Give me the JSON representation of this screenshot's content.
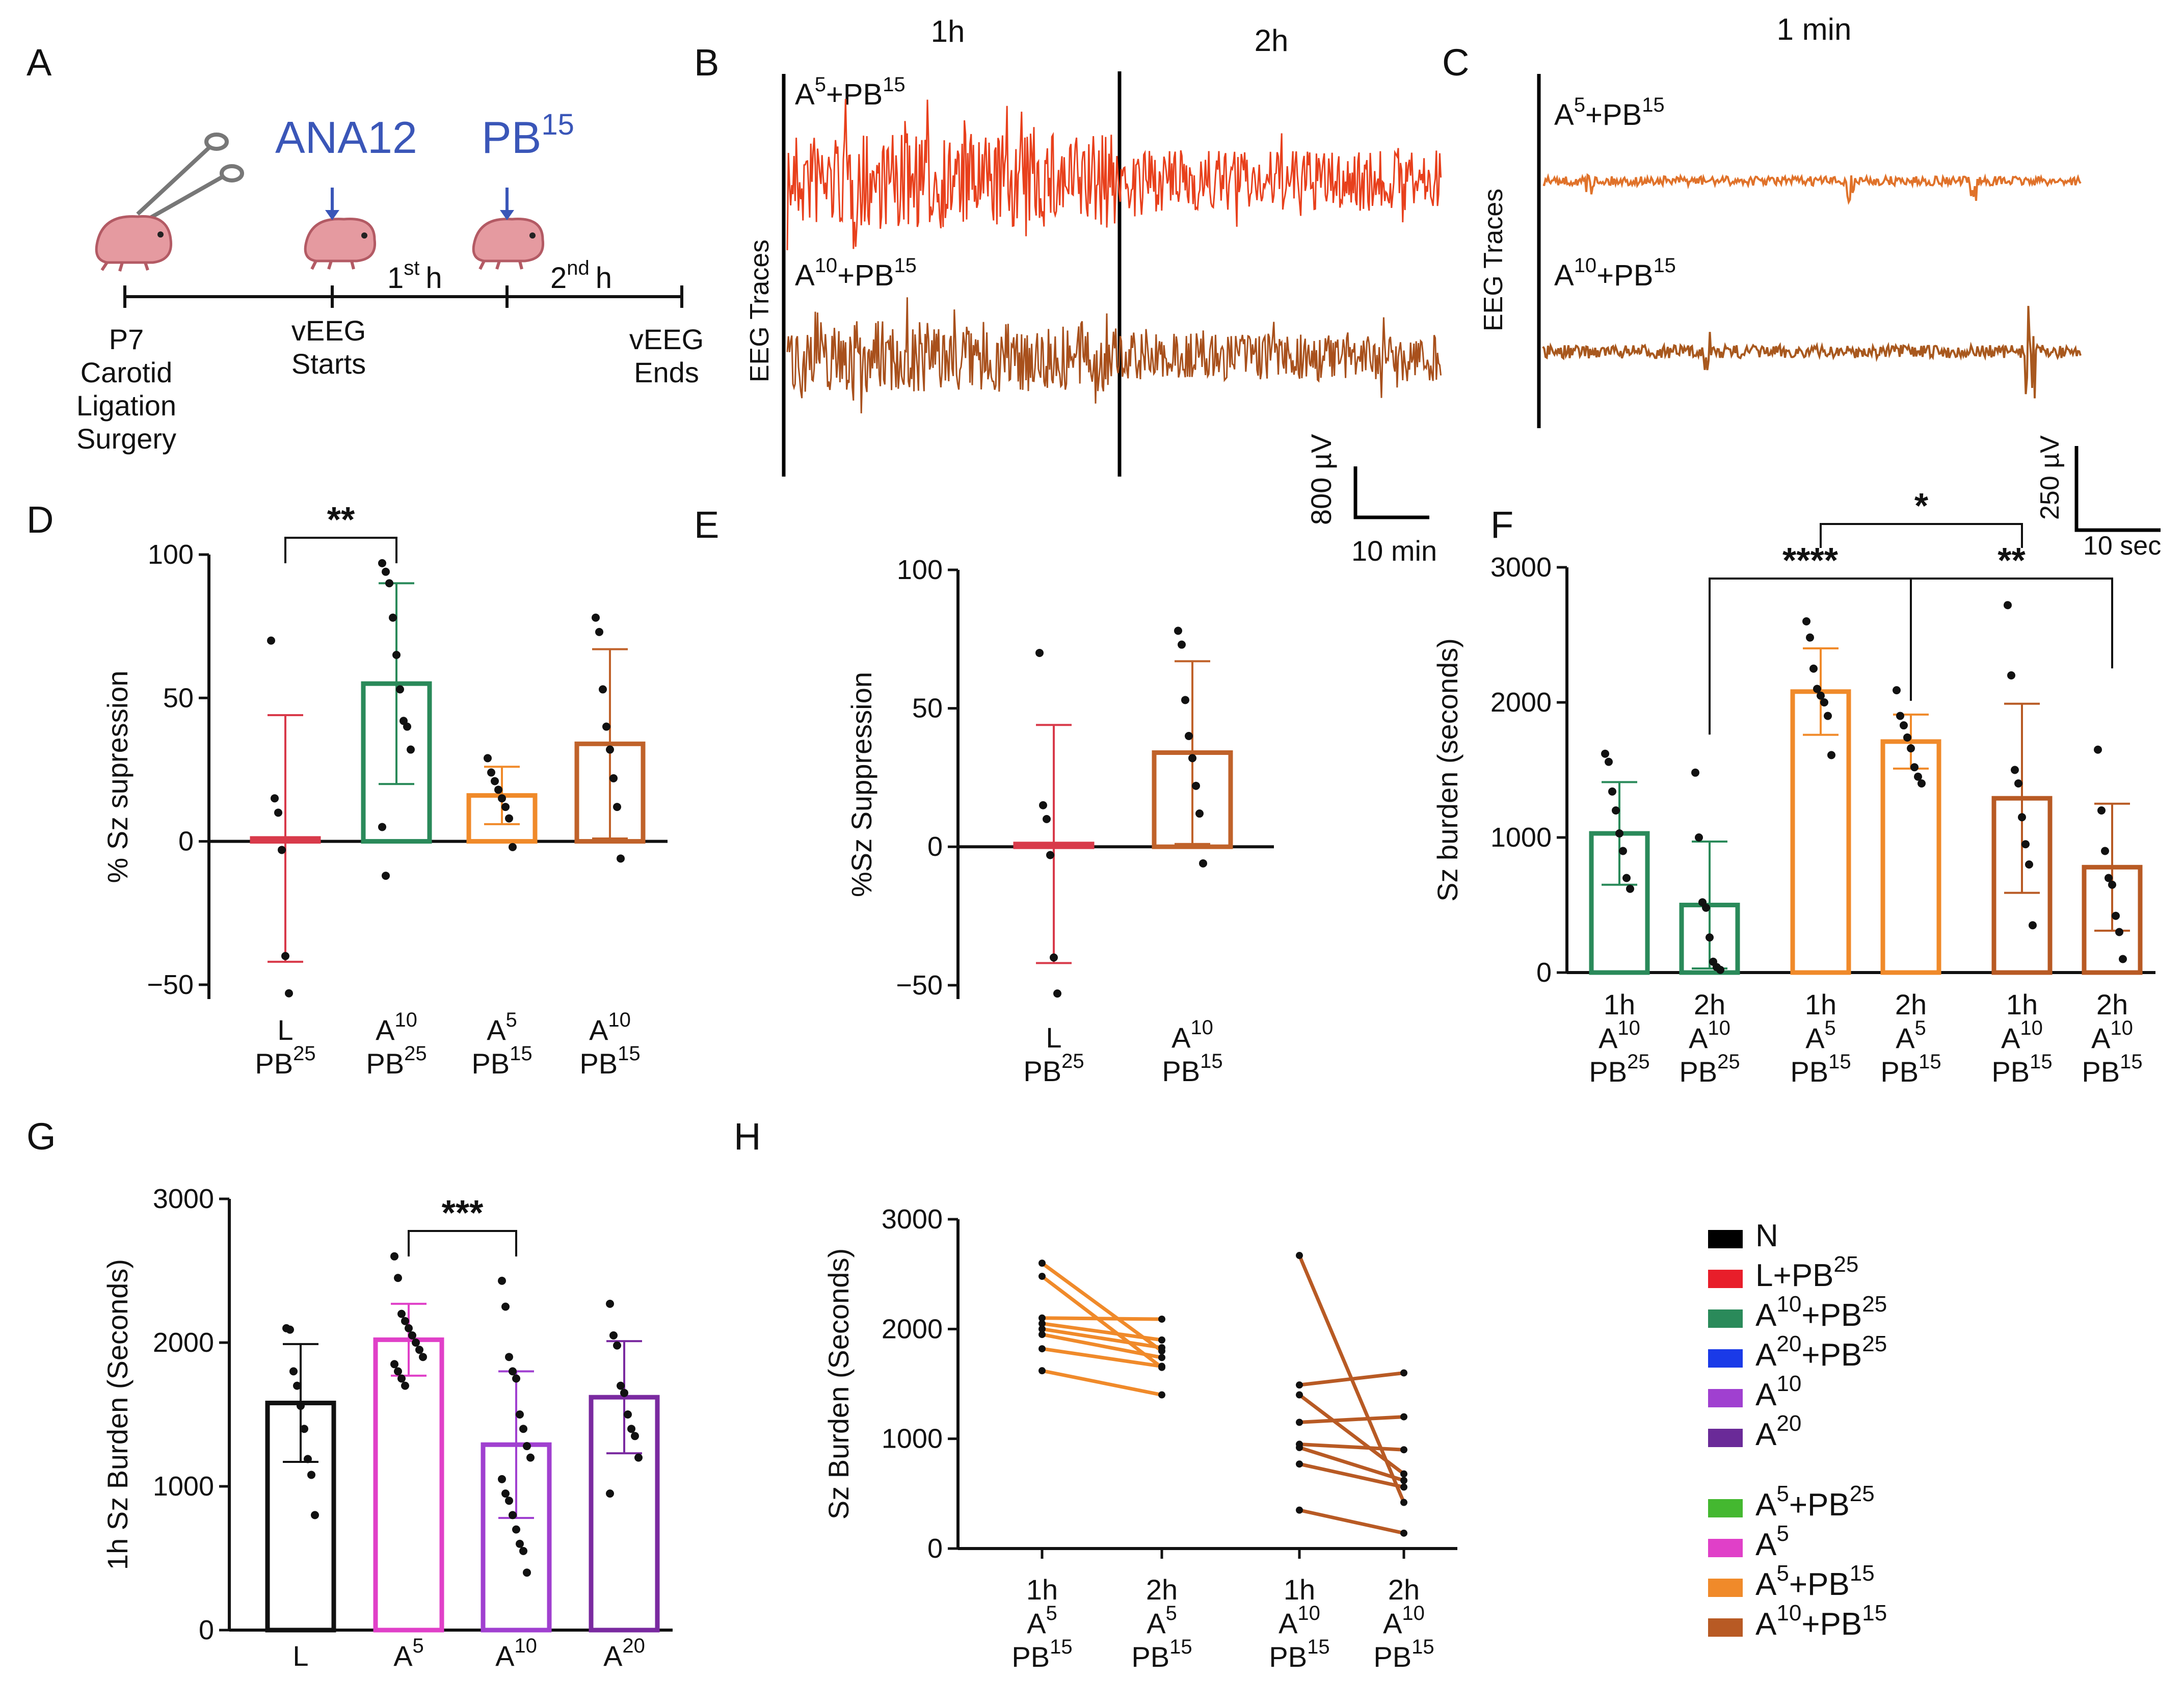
{
  "panel_letters": [
    "A",
    "B",
    "C",
    "D",
    "E",
    "F",
    "G",
    "H"
  ],
  "panel_a": {
    "drugs": [
      "ANA12",
      "PB",
      "15"
    ],
    "hours": [
      {
        "label": "1",
        "sup": "st",
        "unit": "h"
      },
      {
        "label": "2",
        "sup": "nd",
        "unit": "h"
      }
    ],
    "events": [
      [
        "P7",
        "Carotid",
        "Ligation",
        "Surgery"
      ],
      [
        "vEEG",
        "Starts"
      ],
      [
        "vEEG",
        "Ends"
      ]
    ],
    "drug_color": "#3a56b8"
  },
  "panel_b": {
    "hour_labels": [
      "1h",
      "2h"
    ],
    "trace_labels": [
      {
        "base": "A",
        "sup1": "5",
        "mid": "+PB",
        "sup2": "15"
      },
      {
        "base": "A",
        "sup1": "10",
        "mid": "+PB",
        "sup2": "15"
      }
    ],
    "ylabel": "EEG Traces",
    "scale_y": "800 µV",
    "scale_x": "10 min",
    "colors": [
      "#e8401c",
      "#a8501c"
    ]
  },
  "panel_c": {
    "title": "1 min",
    "trace_labels": [
      {
        "base": "A",
        "sup1": "5",
        "mid": "+PB",
        "sup2": "15"
      },
      {
        "base": "A",
        "sup1": "10",
        "mid": "+PB",
        "sup2": "15"
      }
    ],
    "ylabel": "EEG Traces",
    "scale_y": "250 µV",
    "scale_x": "10 sec",
    "colors": [
      "#e0722a",
      "#a8581e"
    ]
  },
  "chart_data": [
    {
      "id": "D",
      "type": "bar",
      "ylabel": "% Sz supression",
      "ylim": [
        -55,
        100
      ],
      "yticks": [
        -50,
        0,
        50,
        100
      ],
      "tick_labels": [
        "−50",
        "0",
        "50",
        "100"
      ],
      "categories": [
        [
          {
            "t": "L"
          },
          {
            "t": "PB",
            "s": "25"
          }
        ],
        [
          {
            "t": "A",
            "s": "10"
          },
          {
            "t": "PB",
            "s": "25"
          }
        ],
        [
          {
            "t": "A",
            "s": "5"
          },
          {
            "t": "PB",
            "s": "15"
          }
        ],
        [
          {
            "t": "A",
            "s": "10"
          },
          {
            "t": "PB",
            "s": "15"
          }
        ]
      ],
      "values": [
        1,
        55,
        16,
        34
      ],
      "err": [
        43,
        35,
        10,
        33
      ],
      "colors": [
        "#d83a4a",
        "#2a8a5a",
        "#f08a2a",
        "#c0622a"
      ],
      "points": [
        [
          70,
          15,
          10,
          -3,
          -40,
          -53
        ],
        [
          97,
          94,
          90,
          78,
          65,
          53,
          42,
          40,
          32,
          5,
          -12
        ],
        [
          29,
          24,
          21,
          18,
          15,
          12,
          8,
          -2
        ],
        [
          78,
          73,
          53,
          40,
          32,
          22,
          12,
          -6
        ]
      ],
      "significance": [
        {
          "from": 0,
          "to": 1,
          "label": "**"
        }
      ]
    },
    {
      "id": "E",
      "type": "bar",
      "ylabel": "%Sz Suppression",
      "ylim": [
        -55,
        100
      ],
      "yticks": [
        -50,
        0,
        50,
        100
      ],
      "tick_labels": [
        "−50",
        "0",
        "50",
        "100"
      ],
      "categories": [
        [
          {
            "t": "L"
          },
          {
            "t": "PB",
            "s": "25"
          }
        ],
        [
          {
            "t": "A",
            "s": "10"
          },
          {
            "t": "PB",
            "s": "15"
          }
        ]
      ],
      "values": [
        1,
        34
      ],
      "err": [
        43,
        33
      ],
      "colors": [
        "#d83a4a",
        "#c0622a"
      ],
      "points": [
        [
          70,
          15,
          10,
          -3,
          -40,
          -53
        ],
        [
          78,
          73,
          53,
          40,
          32,
          22,
          12,
          -6
        ]
      ],
      "significance": []
    },
    {
      "id": "F",
      "type": "bar",
      "ylabel": "Sz burden (seconds)",
      "ylim": [
        0,
        3000
      ],
      "yticks": [
        0,
        1000,
        2000,
        3000
      ],
      "tick_labels": [
        "0",
        "1000",
        "2000",
        "3000"
      ],
      "categories": [
        [
          {
            "t": "1h"
          },
          {
            "t": "A",
            "s": "10"
          },
          {
            "t": "PB",
            "s": "25"
          }
        ],
        [
          {
            "t": "2h"
          },
          {
            "t": "A",
            "s": "10"
          },
          {
            "t": "PB",
            "s": "25"
          }
        ],
        [
          {
            "t": "1h"
          },
          {
            "t": "A",
            "s": "5"
          },
          {
            "t": "PB",
            "s": "15"
          }
        ],
        [
          {
            "t": "2h"
          },
          {
            "t": "A",
            "s": "5"
          },
          {
            "t": "PB",
            "s": "15"
          }
        ],
        [
          {
            "t": "1h"
          },
          {
            "t": "A",
            "s": "10"
          },
          {
            "t": "PB",
            "s": "15"
          }
        ],
        [
          {
            "t": "2h"
          },
          {
            "t": "A",
            "s": "10"
          },
          {
            "t": "PB",
            "s": "15"
          }
        ]
      ],
      "values": [
        1030,
        500,
        2080,
        1710,
        1290,
        780
      ],
      "err": [
        380,
        470,
        320,
        200,
        700,
        470
      ],
      "colors": [
        "#2a8a5a",
        "#2a8a5a",
        "#f08a2a",
        "#f08a2a",
        "#b85a24",
        "#b85a24"
      ],
      "points": [
        [
          1620,
          1560,
          1340,
          1200,
          1030,
          900,
          700,
          620
        ],
        [
          1480,
          1000,
          520,
          480,
          260,
          80,
          40,
          20
        ],
        [
          2600,
          2480,
          2250,
          2100,
          2050,
          2000,
          1900,
          1610
        ],
        [
          2090,
          1900,
          1830,
          1740,
          1660,
          1520,
          1450,
          1400
        ],
        [
          2720,
          2200,
          1500,
          1400,
          1150,
          950,
          800,
          350
        ],
        [
          1650,
          1200,
          900,
          700,
          650,
          420,
          300,
          100
        ]
      ],
      "group_gaps": [
        2,
        4
      ],
      "significance": [
        {
          "from": 2,
          "to": 4,
          "label": "*",
          "level": 2
        },
        {
          "from": 1,
          "to": 3,
          "label": "****",
          "level": 1
        },
        {
          "from": 3,
          "to": 5,
          "label": "**",
          "level": 1
        }
      ]
    },
    {
      "id": "G",
      "type": "bar",
      "ylabel": "1h Sz Burden (Seconds)",
      "ylim": [
        0,
        3000
      ],
      "yticks": [
        0,
        1000,
        2000,
        3000
      ],
      "tick_labels": [
        "0",
        "1000",
        "2000",
        "3000"
      ],
      "categories": [
        [
          {
            "t": "L"
          }
        ],
        [
          {
            "t": "A",
            "s": "5"
          }
        ],
        [
          {
            "t": "A",
            "s": "10"
          }
        ],
        [
          {
            "t": "A",
            "s": "20"
          }
        ]
      ],
      "values": [
        1580,
        2020,
        1290,
        1620
      ],
      "err": [
        410,
        250,
        510,
        390
      ],
      "colors": [
        "#111111",
        "#e040c8",
        "#a040d0",
        "#7a2aa0"
      ],
      "points": [
        [
          2100,
          2090,
          1800,
          1700,
          1560,
          1400,
          1190,
          1080,
          800
        ],
        [
          2600,
          2450,
          2200,
          2150,
          2100,
          2050,
          2000,
          1950,
          1900,
          1850,
          1800,
          1750,
          1700
        ],
        [
          2430,
          2250,
          1900,
          1800,
          1750,
          1500,
          1400,
          1280,
          1200,
          1050,
          950,
          900,
          800,
          700,
          600,
          550,
          400
        ],
        [
          2270,
          2050,
          1980,
          1700,
          1650,
          1500,
          1400,
          1350,
          1200,
          950
        ]
      ],
      "significance": [
        {
          "from": 1,
          "to": 2,
          "label": "***"
        }
      ]
    },
    {
      "id": "H",
      "type": "line",
      "ylabel": "Sz Burden (Seconds)",
      "ylim": [
        0,
        3000
      ],
      "yticks": [
        0,
        1000,
        2000,
        3000
      ],
      "tick_labels": [
        "0",
        "1000",
        "2000",
        "3000"
      ],
      "categories": [
        [
          {
            "t": "1h"
          },
          {
            "t": "A",
            "s": "5"
          },
          {
            "t": "PB",
            "s": "15"
          }
        ],
        [
          {
            "t": "2h"
          },
          {
            "t": "A",
            "s": "5"
          },
          {
            "t": "PB",
            "s": "15"
          }
        ],
        [
          {
            "t": "1h"
          },
          {
            "t": "A",
            "s": "10"
          },
          {
            "t": "PB",
            "s": "15"
          }
        ],
        [
          {
            "t": "2h"
          },
          {
            "t": "A",
            "s": "10"
          },
          {
            "t": "PB",
            "s": "15"
          }
        ]
      ],
      "colors": [
        "#f08a2a",
        "#b85a24"
      ],
      "pairs": [
        {
          "group": 0,
          "from": 2600,
          "to": 1800
        },
        {
          "group": 0,
          "from": 2480,
          "to": 1650
        },
        {
          "group": 0,
          "from": 2100,
          "to": 2090
        },
        {
          "group": 0,
          "from": 2050,
          "to": 1900
        },
        {
          "group": 0,
          "from": 2000,
          "to": 1830
        },
        {
          "group": 0,
          "from": 1950,
          "to": 1740
        },
        {
          "group": 0,
          "from": 1820,
          "to": 1660
        },
        {
          "group": 0,
          "from": 1620,
          "to": 1400
        },
        {
          "group": 1,
          "from": 2670,
          "to": 420
        },
        {
          "group": 1,
          "from": 1490,
          "to": 1600
        },
        {
          "group": 1,
          "from": 1400,
          "to": 680
        },
        {
          "group": 1,
          "from": 1150,
          "to": 1200
        },
        {
          "group": 1,
          "from": 950,
          "to": 900
        },
        {
          "group": 1,
          "from": 920,
          "to": 620
        },
        {
          "group": 1,
          "from": 770,
          "to": 560
        },
        {
          "group": 1,
          "from": 350,
          "to": 140
        }
      ]
    }
  ],
  "legend": {
    "groups": [
      [
        {
          "base": "N",
          "color": "#000000"
        },
        {
          "base": "L+PB",
          "sup": "25",
          "color": "#e81e2a"
        },
        {
          "base": "A",
          "sup": "10",
          "mid": "+PB",
          "sup2": "25",
          "color": "#2a8a5a"
        },
        {
          "base": "A",
          "sup": "20",
          "mid": "+PB",
          "sup2": "25",
          "color": "#1a3ae8"
        },
        {
          "base": "A",
          "sup": "10",
          "color": "#a040d0"
        },
        {
          "base": "A",
          "sup": "20",
          "color": "#6a2a98"
        }
      ],
      [
        {
          "base": "A",
          "sup": "5",
          "mid": "+PB",
          "sup2": "25",
          "color": "#44b830"
        },
        {
          "base": "A",
          "sup": "5",
          "color": "#e040c8"
        },
        {
          "base": "A",
          "sup": "5",
          "mid": "+PB",
          "sup2": "15",
          "color": "#f08a2a"
        },
        {
          "base": "A",
          "sup": "10",
          "mid": "+PB",
          "sup2": "15",
          "color": "#b85a24"
        }
      ]
    ]
  }
}
